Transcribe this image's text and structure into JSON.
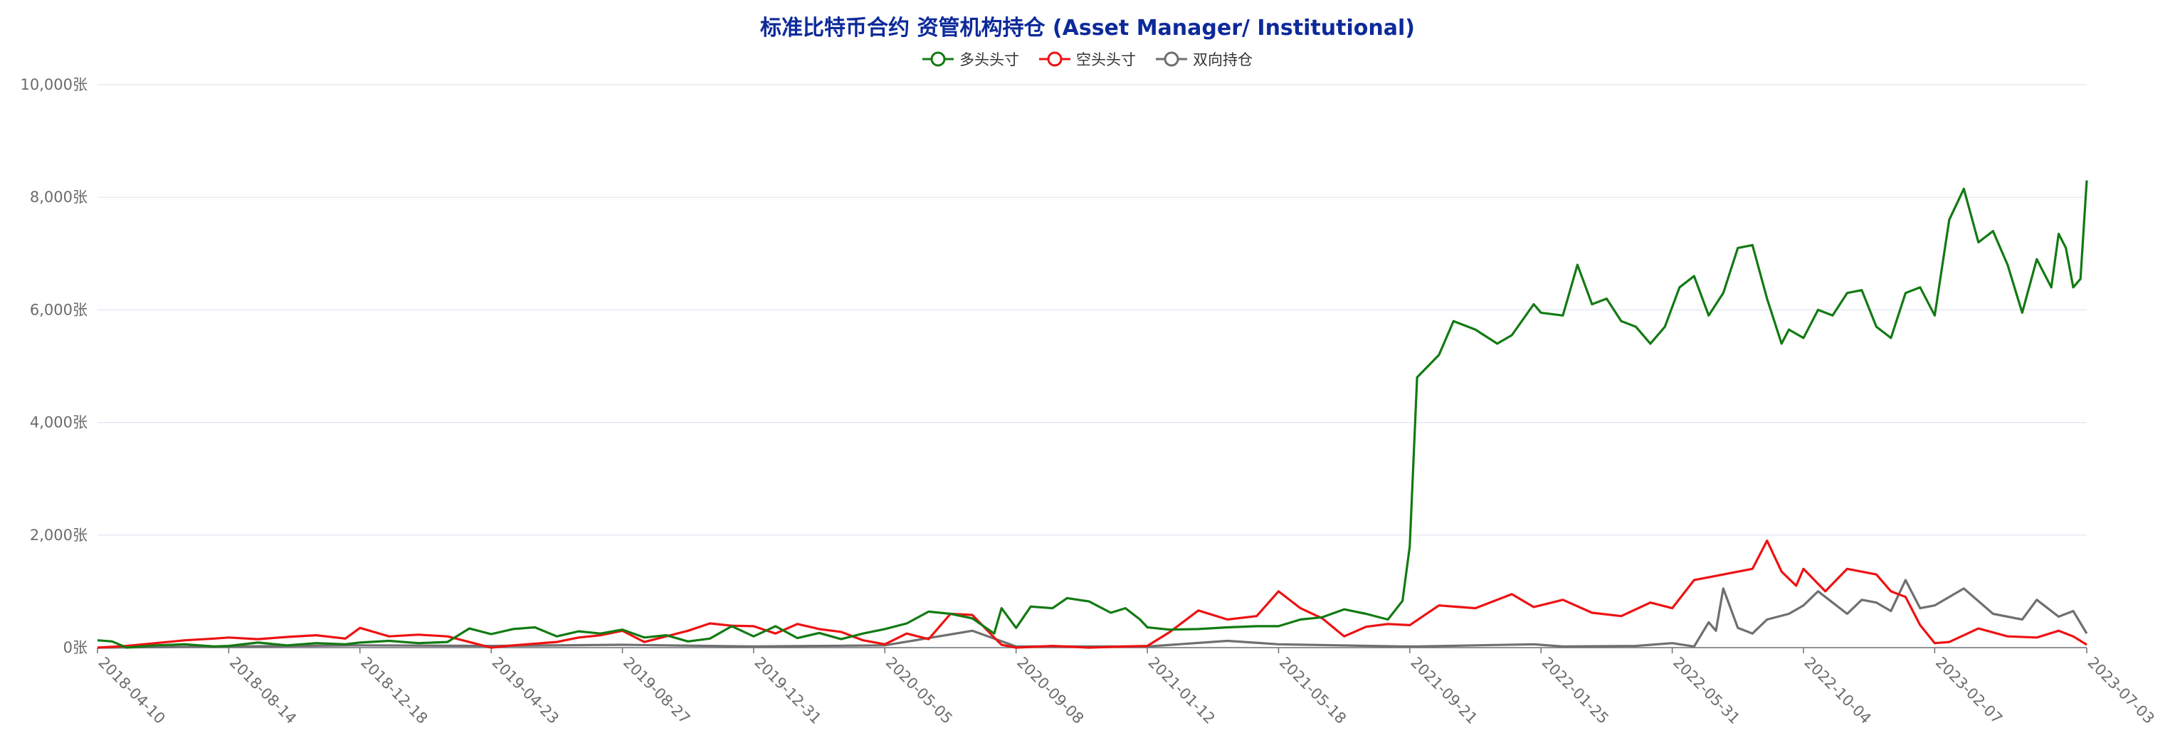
{
  "chart_data": {
    "type": "line",
    "title": "标准比特币合约 资管机构持仓 (Asset Manager/ Institutional)",
    "y_unit": "张",
    "ylim": [
      0,
      10000
    ],
    "ytick_labels": [
      "0张",
      "2,000张",
      "4,000张",
      "6,000张",
      "8,000张",
      "10,000张"
    ],
    "ytick_values": [
      0,
      2000,
      4000,
      6000,
      8000,
      10000
    ],
    "x_range": [
      "2018-04-10",
      "2023-07-03"
    ],
    "xtick_labels": [
      "2018-04-10",
      "2018-08-14",
      "2018-12-18",
      "2019-04-23",
      "2019-08-27",
      "2019-12-31",
      "2020-05-05",
      "2020-09-08",
      "2021-01-12",
      "2021-05-18",
      "2021-09-21",
      "2022-01-25",
      "2022-05-31",
      "2022-10-04",
      "2023-02-07",
      "2023-07-03"
    ],
    "legend_position": "top-center",
    "grid": true,
    "series": [
      {
        "name": "多头头寸",
        "color": "#127a12",
        "points": [
          [
            "2018-04-10",
            130
          ],
          [
            "2018-04-24",
            110
          ],
          [
            "2018-05-08",
            0
          ],
          [
            "2018-06-05",
            40
          ],
          [
            "2018-07-03",
            60
          ],
          [
            "2018-07-31",
            20
          ],
          [
            "2018-08-14",
            30
          ],
          [
            "2018-09-11",
            90
          ],
          [
            "2018-10-09",
            40
          ],
          [
            "2018-11-06",
            80
          ],
          [
            "2018-12-04",
            60
          ],
          [
            "2018-12-18",
            90
          ],
          [
            "2019-01-15",
            120
          ],
          [
            "2019-02-12",
            80
          ],
          [
            "2019-03-12",
            100
          ],
          [
            "2019-04-02",
            340
          ],
          [
            "2019-04-23",
            240
          ],
          [
            "2019-05-14",
            330
          ],
          [
            "2019-06-04",
            360
          ],
          [
            "2019-06-25",
            200
          ],
          [
            "2019-07-16",
            290
          ],
          [
            "2019-08-06",
            250
          ],
          [
            "2019-08-27",
            320
          ],
          [
            "2019-09-17",
            180
          ],
          [
            "2019-10-08",
            220
          ],
          [
            "2019-10-29",
            110
          ],
          [
            "2019-11-19",
            160
          ],
          [
            "2019-12-10",
            380
          ],
          [
            "2019-12-31",
            200
          ],
          [
            "2020-01-21",
            380
          ],
          [
            "2020-02-11",
            170
          ],
          [
            "2020-03-03",
            260
          ],
          [
            "2020-03-24",
            150
          ],
          [
            "2020-04-14",
            250
          ],
          [
            "2020-05-05",
            330
          ],
          [
            "2020-05-26",
            430
          ],
          [
            "2020-06-16",
            640
          ],
          [
            "2020-07-07",
            600
          ],
          [
            "2020-07-28",
            520
          ],
          [
            "2020-08-18",
            250
          ],
          [
            "2020-08-25",
            700
          ],
          [
            "2020-09-08",
            350
          ],
          [
            "2020-09-22",
            730
          ],
          [
            "2020-10-13",
            700
          ],
          [
            "2020-10-27",
            880
          ],
          [
            "2020-11-17",
            820
          ],
          [
            "2020-12-08",
            620
          ],
          [
            "2020-12-22",
            700
          ],
          [
            "2021-01-05",
            500
          ],
          [
            "2021-01-12",
            360
          ],
          [
            "2021-02-02",
            320
          ],
          [
            "2021-03-02",
            330
          ],
          [
            "2021-03-30",
            360
          ],
          [
            "2021-04-27",
            380
          ],
          [
            "2021-05-18",
            380
          ],
          [
            "2021-06-08",
            500
          ],
          [
            "2021-06-29",
            540
          ],
          [
            "2021-07-20",
            680
          ],
          [
            "2021-08-10",
            600
          ],
          [
            "2021-08-31",
            500
          ],
          [
            "2021-09-14",
            830
          ],
          [
            "2021-09-21",
            1800
          ],
          [
            "2021-09-28",
            4800
          ],
          [
            "2021-10-19",
            5200
          ],
          [
            "2021-11-02",
            5800
          ],
          [
            "2021-11-23",
            5650
          ],
          [
            "2021-12-14",
            5400
          ],
          [
            "2021-12-28",
            5550
          ],
          [
            "2022-01-18",
            6100
          ],
          [
            "2022-01-25",
            5950
          ],
          [
            "2022-02-15",
            5900
          ],
          [
            "2022-03-01",
            6800
          ],
          [
            "2022-03-15",
            6100
          ],
          [
            "2022-03-29",
            6200
          ],
          [
            "2022-04-12",
            5800
          ],
          [
            "2022-04-26",
            5700
          ],
          [
            "2022-05-10",
            5400
          ],
          [
            "2022-05-24",
            5700
          ],
          [
            "2022-06-07",
            6400
          ],
          [
            "2022-06-21",
            6600
          ],
          [
            "2022-07-05",
            5900
          ],
          [
            "2022-07-19",
            6300
          ],
          [
            "2022-08-02",
            7100
          ],
          [
            "2022-08-16",
            7150
          ],
          [
            "2022-08-30",
            6200
          ],
          [
            "2022-09-13",
            5400
          ],
          [
            "2022-09-20",
            5650
          ],
          [
            "2022-10-04",
            5500
          ],
          [
            "2022-10-18",
            6000
          ],
          [
            "2022-11-01",
            5900
          ],
          [
            "2022-11-15",
            6300
          ],
          [
            "2022-11-29",
            6350
          ],
          [
            "2022-12-13",
            5700
          ],
          [
            "2022-12-27",
            5500
          ],
          [
            "2023-01-10",
            6300
          ],
          [
            "2023-01-24",
            6400
          ],
          [
            "2023-02-07",
            5900
          ],
          [
            "2023-02-21",
            7600
          ],
          [
            "2023-03-07",
            8150
          ],
          [
            "2023-03-21",
            7200
          ],
          [
            "2023-04-04",
            7400
          ],
          [
            "2023-04-18",
            6800
          ],
          [
            "2023-05-02",
            5950
          ],
          [
            "2023-05-16",
            6900
          ],
          [
            "2023-05-30",
            6400
          ],
          [
            "2023-06-06",
            7350
          ],
          [
            "2023-06-13",
            7100
          ],
          [
            "2023-06-20",
            6400
          ],
          [
            "2023-06-27",
            6550
          ],
          [
            "2023-07-03",
            8300
          ]
        ]
      },
      {
        "name": "空头头寸",
        "color": "#ee1111",
        "points": [
          [
            "2018-04-10",
            0
          ],
          [
            "2018-05-08",
            30
          ],
          [
            "2018-06-05",
            80
          ],
          [
            "2018-07-03",
            130
          ],
          [
            "2018-07-31",
            160
          ],
          [
            "2018-08-14",
            180
          ],
          [
            "2018-09-11",
            150
          ],
          [
            "2018-10-09",
            190
          ],
          [
            "2018-11-06",
            220
          ],
          [
            "2018-12-04",
            160
          ],
          [
            "2018-12-18",
            350
          ],
          [
            "2019-01-15",
            200
          ],
          [
            "2019-02-12",
            230
          ],
          [
            "2019-03-12",
            200
          ],
          [
            "2019-04-02",
            100
          ],
          [
            "2019-04-23",
            0
          ],
          [
            "2019-05-14",
            40
          ],
          [
            "2019-06-25",
            100
          ],
          [
            "2019-07-16",
            180
          ],
          [
            "2019-08-06",
            220
          ],
          [
            "2019-08-27",
            300
          ],
          [
            "2019-09-17",
            100
          ],
          [
            "2019-10-08",
            200
          ],
          [
            "2019-10-29",
            300
          ],
          [
            "2019-11-19",
            430
          ],
          [
            "2019-12-10",
            390
          ],
          [
            "2019-12-31",
            380
          ],
          [
            "2020-01-21",
            250
          ],
          [
            "2020-02-11",
            420
          ],
          [
            "2020-03-03",
            330
          ],
          [
            "2020-03-24",
            280
          ],
          [
            "2020-04-14",
            130
          ],
          [
            "2020-05-05",
            60
          ],
          [
            "2020-05-26",
            250
          ],
          [
            "2020-06-16",
            150
          ],
          [
            "2020-07-07",
            600
          ],
          [
            "2020-07-28",
            580
          ],
          [
            "2020-08-18",
            180
          ],
          [
            "2020-08-25",
            50
          ],
          [
            "2020-09-08",
            0
          ],
          [
            "2020-10-13",
            30
          ],
          [
            "2020-11-17",
            0
          ],
          [
            "2020-12-22",
            20
          ],
          [
            "2021-01-12",
            30
          ],
          [
            "2021-02-02",
            270
          ],
          [
            "2021-03-02",
            660
          ],
          [
            "2021-03-30",
            500
          ],
          [
            "2021-04-27",
            560
          ],
          [
            "2021-05-18",
            1000
          ],
          [
            "2021-06-08",
            700
          ],
          [
            "2021-06-29",
            520
          ],
          [
            "2021-07-20",
            200
          ],
          [
            "2021-08-10",
            370
          ],
          [
            "2021-08-31",
            420
          ],
          [
            "2021-09-21",
            400
          ],
          [
            "2021-10-19",
            750
          ],
          [
            "2021-11-23",
            700
          ],
          [
            "2021-12-28",
            950
          ],
          [
            "2022-01-18",
            720
          ],
          [
            "2022-02-15",
            850
          ],
          [
            "2022-03-15",
            620
          ],
          [
            "2022-04-12",
            560
          ],
          [
            "2022-05-10",
            800
          ],
          [
            "2022-05-31",
            700
          ],
          [
            "2022-06-21",
            1200
          ],
          [
            "2022-07-19",
            1300
          ],
          [
            "2022-08-16",
            1400
          ],
          [
            "2022-08-30",
            1900
          ],
          [
            "2022-09-13",
            1350
          ],
          [
            "2022-09-27",
            1100
          ],
          [
            "2022-10-04",
            1400
          ],
          [
            "2022-10-25",
            1000
          ],
          [
            "2022-11-15",
            1400
          ],
          [
            "2022-12-13",
            1300
          ],
          [
            "2022-12-27",
            1000
          ],
          [
            "2023-01-10",
            900
          ],
          [
            "2023-01-24",
            400
          ],
          [
            "2023-02-07",
            80
          ],
          [
            "2023-02-21",
            100
          ],
          [
            "2023-03-21",
            340
          ],
          [
            "2023-04-18",
            200
          ],
          [
            "2023-05-16",
            180
          ],
          [
            "2023-06-06",
            300
          ],
          [
            "2023-06-20",
            200
          ],
          [
            "2023-07-03",
            50
          ]
        ]
      },
      {
        "name": "双向持仓",
        "color": "#6f6f6f",
        "points": [
          [
            "2018-04-10",
            0
          ],
          [
            "2018-08-14",
            20
          ],
          [
            "2018-12-18",
            40
          ],
          [
            "2019-04-23",
            30
          ],
          [
            "2019-08-27",
            50
          ],
          [
            "2019-12-31",
            20
          ],
          [
            "2020-05-05",
            40
          ],
          [
            "2020-07-28",
            300
          ],
          [
            "2020-09-08",
            20
          ],
          [
            "2021-01-12",
            20
          ],
          [
            "2021-03-30",
            120
          ],
          [
            "2021-05-18",
            60
          ],
          [
            "2021-09-14",
            20
          ],
          [
            "2021-09-28",
            20
          ],
          [
            "2021-11-23",
            40
          ],
          [
            "2022-01-18",
            60
          ],
          [
            "2022-02-15",
            20
          ],
          [
            "2022-04-26",
            30
          ],
          [
            "2022-05-31",
            80
          ],
          [
            "2022-06-21",
            20
          ],
          [
            "2022-07-05",
            450
          ],
          [
            "2022-07-12",
            300
          ],
          [
            "2022-07-19",
            1050
          ],
          [
            "2022-08-02",
            350
          ],
          [
            "2022-08-16",
            250
          ],
          [
            "2022-08-30",
            500
          ],
          [
            "2022-09-20",
            600
          ],
          [
            "2022-10-04",
            750
          ],
          [
            "2022-10-18",
            1000
          ],
          [
            "2022-11-01",
            800
          ],
          [
            "2022-11-15",
            600
          ],
          [
            "2022-11-29",
            850
          ],
          [
            "2022-12-13",
            800
          ],
          [
            "2022-12-27",
            650
          ],
          [
            "2023-01-10",
            1200
          ],
          [
            "2023-01-24",
            700
          ],
          [
            "2023-02-07",
            750
          ],
          [
            "2023-03-07",
            1050
          ],
          [
            "2023-04-04",
            600
          ],
          [
            "2023-05-02",
            500
          ],
          [
            "2023-05-16",
            850
          ],
          [
            "2023-06-06",
            550
          ],
          [
            "2023-06-20",
            650
          ],
          [
            "2023-07-03",
            250
          ]
        ]
      }
    ]
  }
}
